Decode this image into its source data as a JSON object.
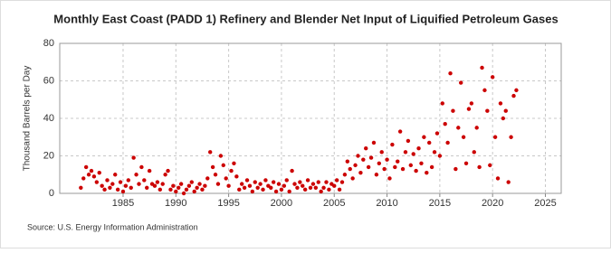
{
  "chart_data": {
    "type": "scatter",
    "title": "Monthly East Coast (PADD 1) Refinery and Blender Net Input of Liquified Petroleum Gases",
    "y_label": "Thousand Barrels per Day",
    "source": "Source: U.S. Energy Information Administration",
    "color": "#cc0000",
    "grid": true,
    "xlim": [
      1979,
      2026.5
    ],
    "ylim": [
      0,
      80
    ],
    "xticks": [
      1985,
      1990,
      1995,
      2000,
      2005,
      2010,
      2015,
      2020,
      2025
    ],
    "yticks": [
      0,
      20,
      40,
      60,
      80
    ],
    "x": [
      1981,
      1981.25,
      1981.5,
      1981.75,
      1982,
      1982.25,
      1982.5,
      1982.75,
      1983,
      1983.25,
      1983.5,
      1983.75,
      1984,
      1984.25,
      1984.5,
      1984.75,
      1985,
      1985.25,
      1985.5,
      1985.75,
      1986,
      1986.25,
      1986.5,
      1986.75,
      1987,
      1987.25,
      1987.5,
      1987.75,
      1988,
      1988.25,
      1988.5,
      1988.75,
      1989,
      1989.25,
      1989.5,
      1989.75,
      1990,
      1990.25,
      1990.5,
      1990.75,
      1991,
      1991.25,
      1991.5,
      1991.75,
      1992,
      1992.25,
      1992.5,
      1992.75,
      1993,
      1993.25,
      1993.5,
      1993.75,
      1994,
      1994.25,
      1994.5,
      1994.75,
      1995,
      1995.25,
      1995.5,
      1995.75,
      1996,
      1996.25,
      1996.5,
      1996.75,
      1997,
      1997.25,
      1997.5,
      1997.75,
      1998,
      1998.25,
      1998.5,
      1998.75,
      1999,
      1999.25,
      1999.5,
      1999.75,
      2000,
      2000.25,
      2000.5,
      2000.75,
      2001,
      2001.25,
      2001.5,
      2001.75,
      2002,
      2002.25,
      2002.5,
      2002.75,
      2003,
      2003.25,
      2003.5,
      2003.75,
      2004,
      2004.25,
      2004.5,
      2004.75,
      2005,
      2005.25,
      2005.5,
      2005.75,
      2006,
      2006.25,
      2006.5,
      2006.75,
      2007,
      2007.25,
      2007.5,
      2007.75,
      2008,
      2008.25,
      2008.5,
      2008.75,
      2009,
      2009.25,
      2009.5,
      2009.75,
      2010,
      2010.25,
      2010.5,
      2010.75,
      2011,
      2011.25,
      2011.5,
      2011.75,
      2012,
      2012.25,
      2012.5,
      2012.75,
      2013,
      2013.25,
      2013.5,
      2013.75,
      2014,
      2014.25,
      2014.5,
      2014.75,
      2015,
      2015.25,
      2015.5,
      2015.75,
      2016,
      2016.25,
      2016.5,
      2016.75,
      2017,
      2017.25,
      2017.5,
      2017.75,
      2018,
      2018.25,
      2018.5,
      2018.75,
      2019,
      2019.25,
      2019.5,
      2019.75,
      2020,
      2020.25,
      2020.5,
      2020.75,
      2021,
      2021.25,
      2021.5,
      2021.75,
      2022,
      2022.25
    ],
    "values": [
      3,
      8,
      14,
      10,
      12,
      9,
      6,
      11,
      4,
      2,
      7,
      3,
      5,
      10,
      2,
      6,
      1,
      4,
      7,
      3,
      19,
      10,
      5,
      14,
      7,
      3,
      12,
      5,
      4,
      6,
      2,
      5,
      10,
      12,
      2,
      4,
      1,
      3,
      5,
      0,
      2,
      4,
      6,
      1,
      3,
      5,
      2,
      4,
      8,
      22,
      14,
      10,
      5,
      20,
      15,
      8,
      4,
      12,
      16,
      9,
      2,
      5,
      3,
      7,
      4,
      1,
      6,
      3,
      5,
      2,
      7,
      4,
      3,
      6,
      1,
      5,
      2,
      4,
      7,
      1,
      12,
      5,
      3,
      6,
      4,
      2,
      7,
      3,
      5,
      3,
      6,
      1,
      3,
      6,
      2,
      5,
      4,
      7,
      2,
      6,
      10,
      17,
      13,
      8,
      15,
      20,
      11,
      18,
      24,
      14,
      19,
      27,
      10,
      16,
      22,
      13,
      18,
      8,
      26,
      14,
      17,
      33,
      13,
      22,
      28,
      15,
      21,
      12,
      24,
      16,
      30,
      11,
      27,
      14,
      22,
      32,
      20,
      48,
      37,
      27,
      64,
      44,
      13,
      35,
      59,
      30,
      16,
      45,
      48,
      22,
      35,
      14,
      67,
      55,
      44,
      15,
      62,
      30,
      8,
      48,
      40,
      44,
      6,
      30,
      52,
      55
    ]
  }
}
